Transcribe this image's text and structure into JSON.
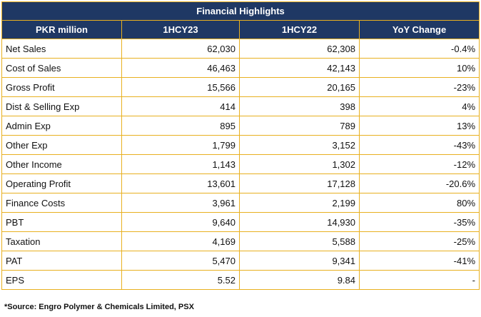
{
  "table": {
    "title": "Financial Highlights",
    "columns": [
      "PKR million",
      "1HCY23",
      "1HCY22",
      "YoY Change"
    ],
    "rows": [
      {
        "label": "Net Sales",
        "cy23": "62,030",
        "cy22": "62,308",
        "yoy": "-0.4%"
      },
      {
        "label": "Cost of Sales",
        "cy23": "46,463",
        "cy22": "42,143",
        "yoy": "10%"
      },
      {
        "label": "Gross Profit",
        "cy23": "15,566",
        "cy22": "20,165",
        "yoy": "-23%"
      },
      {
        "label": "Dist & Selling Exp",
        "cy23": "414",
        "cy22": "398",
        "yoy": "4%"
      },
      {
        "label": "Admin Exp",
        "cy23": "895",
        "cy22": "789",
        "yoy": "13%"
      },
      {
        "label": "Other Exp",
        "cy23": "1,799",
        "cy22": "3,152",
        "yoy": "-43%"
      },
      {
        "label": "Other Income",
        "cy23": "1,143",
        "cy22": "1,302",
        "yoy": "-12%"
      },
      {
        "label": "Operating Profit",
        "cy23": "13,601",
        "cy22": "17,128",
        "yoy": "-20.6%"
      },
      {
        "label": "Finance Costs",
        "cy23": "3,961",
        "cy22": "2,199",
        "yoy": "80%"
      },
      {
        "label": "PBT",
        "cy23": "9,640",
        "cy22": "14,930",
        "yoy": "-35%"
      },
      {
        "label": "Taxation",
        "cy23": "4,169",
        "cy22": "5,588",
        "yoy": "-25%"
      },
      {
        "label": "PAT",
        "cy23": "5,470",
        "cy22": "9,341",
        "yoy": "-41%"
      },
      {
        "label": "EPS",
        "cy23": "5.52",
        "cy22": "9.84",
        "yoy": "-"
      }
    ]
  },
  "source": "*Source: Engro Polymer & Chemicals Limited, PSX",
  "colors": {
    "header_bg": "#1f3864",
    "border": "#e8b020"
  }
}
